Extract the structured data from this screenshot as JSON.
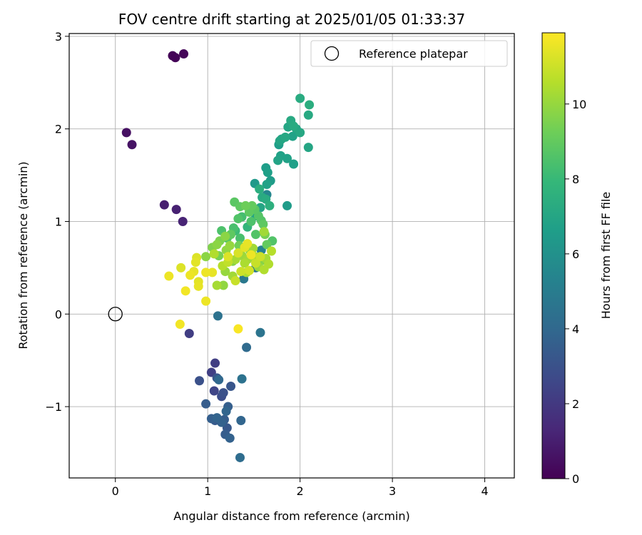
{
  "chart_data": {
    "type": "scatter",
    "title": "FOV centre drift starting at 2025/01/05 01:33:37",
    "xlabel": "Angular distance from reference (arcmin)",
    "ylabel": "Rotation from reference (arcmin)",
    "xlim": [
      -0.5,
      4.32
    ],
    "ylim": [
      -1.77,
      3.03
    ],
    "xticks": [
      0,
      1,
      2,
      3,
      4
    ],
    "xtick_labels": [
      "0",
      "1",
      "2",
      "3",
      "4"
    ],
    "yticks": [
      -1,
      0,
      1,
      2,
      3
    ],
    "ytick_labels": [
      "−1",
      "0",
      "1",
      "2",
      "3"
    ],
    "grid": true,
    "legend": {
      "location": "top-right",
      "entries": [
        "Reference platepar"
      ]
    },
    "reference_point": {
      "name": "Reference platepar",
      "x": 0,
      "y": 0,
      "marker": "open-circle"
    },
    "colorbar": {
      "label": "Hours from first FF file",
      "colormap": "viridis",
      "range": [
        0,
        11.9
      ],
      "ticks": [
        0,
        2,
        4,
        6,
        8,
        10
      ],
      "tick_labels": [
        "0",
        "2",
        "4",
        "6",
        "8",
        "10"
      ],
      "colors": [
        "#440154",
        "#482878",
        "#3e4989",
        "#31688e",
        "#26828e",
        "#1f9e89",
        "#35b779",
        "#6ece58",
        "#b5de2b",
        "#fde725"
      ]
    },
    "points": [
      {
        "x": 0.62,
        "y": 2.79,
        "h": 0.1
      },
      {
        "x": 0.65,
        "y": 2.77,
        "h": 0.1
      },
      {
        "x": 0.74,
        "y": 2.81,
        "h": 0.2
      },
      {
        "x": 0.12,
        "y": 1.96,
        "h": 0.5
      },
      {
        "x": 0.18,
        "y": 1.83,
        "h": 0.6
      },
      {
        "x": 0.53,
        "y": 1.18,
        "h": 1.0
      },
      {
        "x": 0.66,
        "y": 1.13,
        "h": 1.1
      },
      {
        "x": 0.73,
        "y": 1.0,
        "h": 1.2
      },
      {
        "x": 0.8,
        "y": -0.21,
        "h": 2.2
      },
      {
        "x": 0.91,
        "y": -0.72,
        "h": 3.0
      },
      {
        "x": 1.04,
        "y": -0.63,
        "h": 2.3
      },
      {
        "x": 1.08,
        "y": -0.53,
        "h": 2.2
      },
      {
        "x": 1.07,
        "y": -0.83,
        "h": 2.5
      },
      {
        "x": 1.1,
        "y": -0.69,
        "h": 3.2
      },
      {
        "x": 1.12,
        "y": -0.71,
        "h": 4.0
      },
      {
        "x": 1.15,
        "y": -0.89,
        "h": 2.8
      },
      {
        "x": 1.17,
        "y": -0.85,
        "h": 3.0
      },
      {
        "x": 1.25,
        "y": -0.78,
        "h": 3.2
      },
      {
        "x": 0.98,
        "y": -0.97,
        "h": 3.5
      },
      {
        "x": 1.04,
        "y": -1.13,
        "h": 3.6
      },
      {
        "x": 1.08,
        "y": -1.15,
        "h": 3.4
      },
      {
        "x": 1.1,
        "y": -1.12,
        "h": 3.8
      },
      {
        "x": 1.15,
        "y": -1.17,
        "h": 3.7
      },
      {
        "x": 1.18,
        "y": -1.14,
        "h": 3.5
      },
      {
        "x": 1.2,
        "y": -1.05,
        "h": 3.9
      },
      {
        "x": 1.22,
        "y": -1.0,
        "h": 3.6
      },
      {
        "x": 1.21,
        "y": -1.23,
        "h": 3.3
      },
      {
        "x": 1.19,
        "y": -1.3,
        "h": 3.5
      },
      {
        "x": 1.24,
        "y": -1.34,
        "h": 3.7
      },
      {
        "x": 1.36,
        "y": -1.15,
        "h": 3.9
      },
      {
        "x": 1.35,
        "y": -1.55,
        "h": 4.2
      },
      {
        "x": 1.37,
        "y": -0.7,
        "h": 4.5
      },
      {
        "x": 1.11,
        "y": -0.02,
        "h": 4.5
      },
      {
        "x": 1.42,
        "y": -0.36,
        "h": 4.1
      },
      {
        "x": 1.57,
        "y": -0.2,
        "h": 4.6
      },
      {
        "x": 1.39,
        "y": 0.38,
        "h": 4.8
      },
      {
        "x": 1.52,
        "y": 0.5,
        "h": 4.7
      },
      {
        "x": 1.58,
        "y": 0.69,
        "h": 5.3
      },
      {
        "x": 1.64,
        "y": 1.29,
        "h": 5.5
      },
      {
        "x": 1.86,
        "y": 1.17,
        "h": 6.5
      },
      {
        "x": 1.63,
        "y": 1.58,
        "h": 6.6
      },
      {
        "x": 1.65,
        "y": 1.53,
        "h": 6.7
      },
      {
        "x": 1.68,
        "y": 1.44,
        "h": 6.5
      },
      {
        "x": 1.64,
        "y": 1.4,
        "h": 6.8
      },
      {
        "x": 1.51,
        "y": 1.41,
        "h": 6.4
      },
      {
        "x": 1.56,
        "y": 1.35,
        "h": 7.4
      },
      {
        "x": 1.59,
        "y": 1.26,
        "h": 7.2
      },
      {
        "x": 1.52,
        "y": 1.06,
        "h": 6.8
      },
      {
        "x": 1.57,
        "y": 1.15,
        "h": 7.0
      },
      {
        "x": 1.63,
        "y": 1.24,
        "h": 7.3
      },
      {
        "x": 1.67,
        "y": 1.17,
        "h": 7.5
      },
      {
        "x": 1.76,
        "y": 1.66,
        "h": 6.9
      },
      {
        "x": 1.77,
        "y": 1.83,
        "h": 6.6
      },
      {
        "x": 1.79,
        "y": 1.71,
        "h": 6.8
      },
      {
        "x": 1.78,
        "y": 1.87,
        "h": 7.0
      },
      {
        "x": 1.8,
        "y": 1.89,
        "h": 6.9
      },
      {
        "x": 1.86,
        "y": 1.68,
        "h": 6.8
      },
      {
        "x": 1.84,
        "y": 1.91,
        "h": 7.1
      },
      {
        "x": 1.87,
        "y": 2.02,
        "h": 7.0
      },
      {
        "x": 1.92,
        "y": 1.92,
        "h": 6.8
      },
      {
        "x": 1.9,
        "y": 2.09,
        "h": 7.2
      },
      {
        "x": 1.93,
        "y": 2.03,
        "h": 7.3
      },
      {
        "x": 1.96,
        "y": 2.0,
        "h": 7.0
      },
      {
        "x": 2.0,
        "y": 1.96,
        "h": 7.1
      },
      {
        "x": 1.93,
        "y": 1.62,
        "h": 6.7
      },
      {
        "x": 2.09,
        "y": 1.8,
        "h": 7.0
      },
      {
        "x": 2.0,
        "y": 2.33,
        "h": 7.3
      },
      {
        "x": 2.1,
        "y": 2.26,
        "h": 7.4
      },
      {
        "x": 2.09,
        "y": 2.15,
        "h": 7.2
      },
      {
        "x": 1.29,
        "y": 1.21,
        "h": 8.8
      },
      {
        "x": 1.35,
        "y": 1.16,
        "h": 8.9
      },
      {
        "x": 1.41,
        "y": 1.17,
        "h": 9.2
      },
      {
        "x": 1.45,
        "y": 1.1,
        "h": 8.9
      },
      {
        "x": 1.48,
        "y": 1.17,
        "h": 9.0
      },
      {
        "x": 1.51,
        "y": 1.13,
        "h": 8.8
      },
      {
        "x": 1.55,
        "y": 1.06,
        "h": 8.7
      },
      {
        "x": 1.58,
        "y": 1.01,
        "h": 8.6
      },
      {
        "x": 1.6,
        "y": 0.97,
        "h": 8.9
      },
      {
        "x": 1.47,
        "y": 1.0,
        "h": 8.5
      },
      {
        "x": 1.43,
        "y": 0.94,
        "h": 7.8
      },
      {
        "x": 1.37,
        "y": 1.05,
        "h": 8.3
      },
      {
        "x": 1.33,
        "y": 1.03,
        "h": 8.6
      },
      {
        "x": 1.28,
        "y": 0.93,
        "h": 8.4
      },
      {
        "x": 1.3,
        "y": 0.9,
        "h": 8.1
      },
      {
        "x": 1.15,
        "y": 0.9,
        "h": 8.5
      },
      {
        "x": 1.21,
        "y": 0.82,
        "h": 8.7
      },
      {
        "x": 1.25,
        "y": 0.86,
        "h": 8.9
      },
      {
        "x": 1.35,
        "y": 0.82,
        "h": 8.4
      },
      {
        "x": 1.52,
        "y": 0.86,
        "h": 8.6
      },
      {
        "x": 1.62,
        "y": 0.86,
        "h": 9.4
      },
      {
        "x": 1.7,
        "y": 0.79,
        "h": 8.6
      },
      {
        "x": 1.64,
        "y": 0.75,
        "h": 9.0
      },
      {
        "x": 1.61,
        "y": 0.89,
        "h": 10.2
      },
      {
        "x": 1.34,
        "y": 0.74,
        "h": 9.3
      },
      {
        "x": 1.19,
        "y": 0.84,
        "h": 9.8
      },
      {
        "x": 1.12,
        "y": 0.63,
        "h": 9.4
      },
      {
        "x": 1.05,
        "y": 0.72,
        "h": 9.6
      },
      {
        "x": 1.1,
        "y": 0.75,
        "h": 9.8
      },
      {
        "x": 1.13,
        "y": 0.79,
        "h": 9.5
      },
      {
        "x": 1.2,
        "y": 0.69,
        "h": 9.9
      },
      {
        "x": 1.24,
        "y": 0.74,
        "h": 10.0
      },
      {
        "x": 1.27,
        "y": 0.57,
        "h": 9.7
      },
      {
        "x": 1.3,
        "y": 0.59,
        "h": 10.3
      },
      {
        "x": 1.37,
        "y": 0.63,
        "h": 10.1
      },
      {
        "x": 1.4,
        "y": 0.55,
        "h": 10.4
      },
      {
        "x": 1.43,
        "y": 0.59,
        "h": 10.2
      },
      {
        "x": 1.46,
        "y": 0.68,
        "h": 9.8
      },
      {
        "x": 1.49,
        "y": 0.71,
        "h": 10.2
      },
      {
        "x": 1.51,
        "y": 0.62,
        "h": 10.4
      },
      {
        "x": 1.55,
        "y": 0.51,
        "h": 10.1
      },
      {
        "x": 1.59,
        "y": 0.58,
        "h": 9.7
      },
      {
        "x": 1.63,
        "y": 0.6,
        "h": 10.3
      },
      {
        "x": 1.66,
        "y": 0.54,
        "h": 10.5
      },
      {
        "x": 1.69,
        "y": 0.68,
        "h": 10.6
      },
      {
        "x": 1.61,
        "y": 0.48,
        "h": 10.5
      },
      {
        "x": 1.42,
        "y": 0.45,
        "h": 10.4
      },
      {
        "x": 1.27,
        "y": 0.41,
        "h": 10.2
      },
      {
        "x": 1.19,
        "y": 0.46,
        "h": 10.0
      },
      {
        "x": 1.17,
        "y": 0.31,
        "h": 9.9
      },
      {
        "x": 1.1,
        "y": 0.31,
        "h": 10.3
      },
      {
        "x": 1.07,
        "y": 0.65,
        "h": 10.5
      },
      {
        "x": 0.98,
        "y": 0.62,
        "h": 9.8
      },
      {
        "x": 1.16,
        "y": 0.52,
        "h": 10.6
      },
      {
        "x": 1.22,
        "y": 0.56,
        "h": 10.8
      },
      {
        "x": 1.3,
        "y": 0.36,
        "h": 10.9
      },
      {
        "x": 1.36,
        "y": 0.46,
        "h": 11.0
      },
      {
        "x": 1.45,
        "y": 0.47,
        "h": 11.1
      },
      {
        "x": 1.52,
        "y": 0.55,
        "h": 10.9
      },
      {
        "x": 1.57,
        "y": 0.62,
        "h": 11.0
      },
      {
        "x": 1.33,
        "y": 0.66,
        "h": 11.2
      },
      {
        "x": 1.22,
        "y": 0.62,
        "h": 11.3
      },
      {
        "x": 1.4,
        "y": 0.72,
        "h": 11.4
      },
      {
        "x": 1.43,
        "y": 0.76,
        "h": 11.5
      },
      {
        "x": 1.47,
        "y": 0.64,
        "h": 11.6
      },
      {
        "x": 0.88,
        "y": 0.61,
        "h": 11.3
      },
      {
        "x": 0.87,
        "y": 0.56,
        "h": 11.4
      },
      {
        "x": 0.85,
        "y": 0.46,
        "h": 11.5
      },
      {
        "x": 0.81,
        "y": 0.42,
        "h": 11.6
      },
      {
        "x": 0.9,
        "y": 0.35,
        "h": 11.4
      },
      {
        "x": 0.9,
        "y": 0.3,
        "h": 11.5
      },
      {
        "x": 0.98,
        "y": 0.45,
        "h": 11.6
      },
      {
        "x": 1.05,
        "y": 0.45,
        "h": 11.5
      },
      {
        "x": 0.71,
        "y": 0.5,
        "h": 11.3
      },
      {
        "x": 0.58,
        "y": 0.41,
        "h": 11.6
      },
      {
        "x": 0.76,
        "y": 0.25,
        "h": 11.7
      },
      {
        "x": 0.98,
        "y": 0.14,
        "h": 11.6
      },
      {
        "x": 0.7,
        "y": -0.11,
        "h": 11.7
      },
      {
        "x": 1.33,
        "y": -0.16,
        "h": 11.8
      }
    ]
  }
}
